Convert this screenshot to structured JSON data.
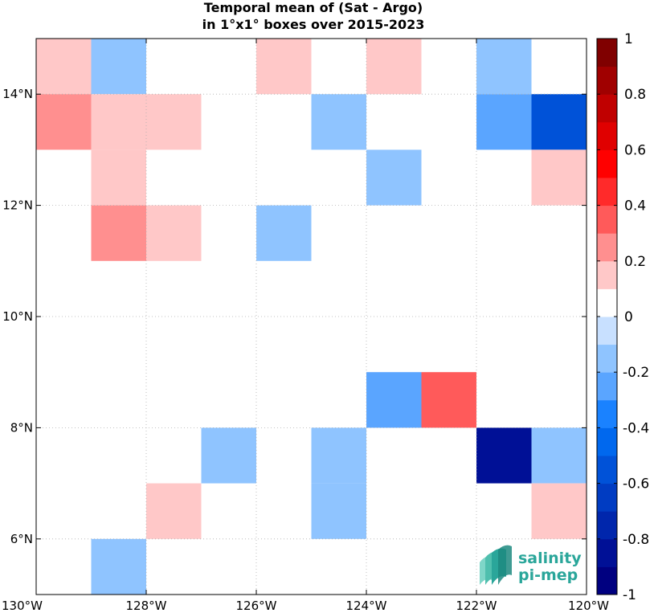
{
  "chart_data": {
    "type": "heatmap",
    "title_line1": "Temporal mean of (Sat - Argo)",
    "title_line2": "in 1°x1° boxes over 2015-2023",
    "x_ticks": [
      "130°W",
      "128°W",
      "126°W",
      "124°W",
      "122°W",
      "120°W"
    ],
    "y_ticks": [
      "6°N",
      "8°N",
      "10°N",
      "12°N",
      "14°N"
    ],
    "xlim": [
      -130,
      -120
    ],
    "ylim": [
      5,
      15
    ],
    "grid": true,
    "colorbar": {
      "range": [
        -1,
        1
      ],
      "ticks": [
        "1",
        "0.8",
        "0.6",
        "0.4",
        "0.2",
        "0",
        "-0.2",
        "-0.4",
        "-0.6",
        "-0.8",
        "-1"
      ],
      "colors": [
        "#000080",
        "#001096",
        "#0026ac",
        "#003cc2",
        "#0052d8",
        "#0068ee",
        "#1a82ff",
        "#5aa5ff",
        "#8fc4ff",
        "#c8e0ff",
        "#ffffff",
        "#ffc8c8",
        "#ff8f8f",
        "#ff5a5a",
        "#ff2a2a",
        "#ff0000",
        "#e00000",
        "#c00000",
        "#a00000",
        "#800000"
      ]
    },
    "cells": [
      {
        "lon": -130,
        "lat": 14,
        "value": 0.15
      },
      {
        "lon": -129,
        "lat": 14,
        "value": -0.15
      },
      {
        "lon": -126,
        "lat": 14,
        "value": 0.15
      },
      {
        "lon": -124,
        "lat": 14,
        "value": 0.15
      },
      {
        "lon": -122,
        "lat": 14,
        "value": -0.15
      },
      {
        "lon": -130,
        "lat": 13,
        "value": 0.25
      },
      {
        "lon": -129,
        "lat": 13,
        "value": 0.15
      },
      {
        "lon": -128,
        "lat": 13,
        "value": 0.15
      },
      {
        "lon": -125,
        "lat": 13,
        "value": -0.15
      },
      {
        "lon": -122,
        "lat": 13,
        "value": -0.25
      },
      {
        "lon": -121,
        "lat": 13,
        "value": -0.55
      },
      {
        "lon": -129,
        "lat": 12,
        "value": 0.15
      },
      {
        "lon": -124,
        "lat": 12,
        "value": -0.15
      },
      {
        "lon": -121,
        "lat": 12,
        "value": 0.15
      },
      {
        "lon": -129,
        "lat": 11,
        "value": 0.25
      },
      {
        "lon": -128,
        "lat": 11,
        "value": 0.15
      },
      {
        "lon": -126,
        "lat": 11,
        "value": -0.15
      },
      {
        "lon": -124,
        "lat": 8,
        "value": -0.25
      },
      {
        "lon": -123,
        "lat": 8,
        "value": 0.35
      },
      {
        "lon": -127,
        "lat": 7,
        "value": -0.15
      },
      {
        "lon": -125,
        "lat": 7,
        "value": -0.15
      },
      {
        "lon": -122,
        "lat": 7,
        "value": -0.85
      },
      {
        "lon": -121,
        "lat": 7,
        "value": -0.15
      },
      {
        "lon": -128,
        "lat": 6,
        "value": 0.15
      },
      {
        "lon": -125,
        "lat": 6,
        "value": -0.15
      },
      {
        "lon": -121,
        "lat": 6,
        "value": 0.15
      },
      {
        "lon": -129,
        "lat": 5,
        "value": -0.15
      }
    ]
  },
  "logo": {
    "line1": "salinity",
    "line2": "pi-mep"
  }
}
